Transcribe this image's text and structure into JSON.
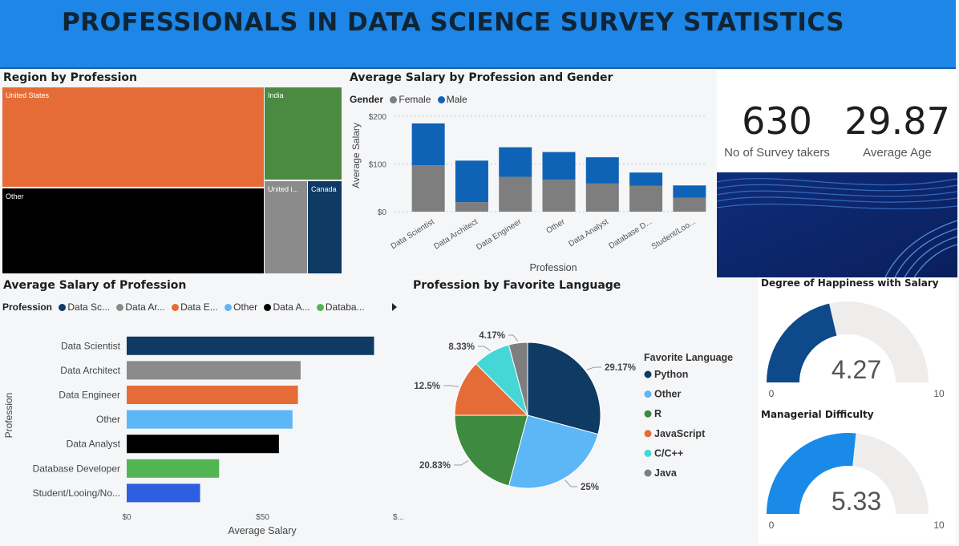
{
  "dashboard_title": "PROFESSIONALS IN DATA SCIENCE SURVEY STATISTICS",
  "colors": {
    "title_bar": "#1d86e6",
    "orange": "#e56c37",
    "green": "#4a8b41",
    "gray": "#8b8b8b",
    "navy": "#0e3a63",
    "male": "#0f63b6",
    "female": "#7e7e7e"
  },
  "treemap": {
    "title": "Region by Profession",
    "tiles": [
      {
        "label": "United States",
        "color": "#e56c37"
      },
      {
        "label": "India",
        "color": "#4a8b41"
      },
      {
        "label": "Other",
        "color": "#000000"
      },
      {
        "label": "United i...",
        "color": "#8b8b8b"
      },
      {
        "label": "Canada",
        "color": "#0e3a63"
      }
    ]
  },
  "kpis": [
    {
      "value": "630",
      "label": "No of Survey takers"
    },
    {
      "value": "29.87",
      "label": "Average Age"
    }
  ],
  "gauges": [
    {
      "title": "Degree of Happiness with Salary",
      "value": 4.27,
      "value_label": "4.27",
      "min": 0,
      "max": 10,
      "min_label": "0",
      "max_label": "10",
      "color": "#0e4a89"
    },
    {
      "title": "Managerial Difficulty",
      "value": 5.33,
      "value_label": "5.33",
      "min": 0,
      "max": 10,
      "min_label": "0",
      "max_label": "10",
      "color": "#1a8ae8"
    }
  ],
  "chart_data": [
    {
      "type": "bar",
      "stacked": true,
      "title": "Average Salary by Profession and Gender",
      "legend_title": "Gender",
      "legend_position": "top-left",
      "xlabel": "Profession",
      "ylabel": "Average Salary",
      "ylim": [
        0,
        200
      ],
      "yticks": [
        "$0",
        "$100",
        "$200"
      ],
      "ytick_values": [
        0,
        100,
        200
      ],
      "grid": true,
      "categories": [
        "Data Scientist",
        "Data Architect",
        "Data Engineer",
        "Other",
        "Data Analyst",
        "Database D...",
        "Student/Loo..."
      ],
      "series": [
        {
          "name": "Female",
          "color": "#7e7e7e",
          "values": [
            97,
            20,
            73,
            67,
            59,
            54,
            29
          ]
        },
        {
          "name": "Male",
          "color": "#0f63b6",
          "values": [
            88,
            87,
            62,
            58,
            55,
            28,
            26
          ]
        }
      ]
    },
    {
      "type": "bar",
      "orientation": "horizontal",
      "title": "Average Salary of Profession",
      "legend_title": "Profession",
      "legend_position": "top-left",
      "legend_items": [
        {
          "label": "Data Sc...",
          "color": "#0e3a63"
        },
        {
          "label": "Data Ar...",
          "color": "#8b8b8b"
        },
        {
          "label": "Data E...",
          "color": "#e56c37"
        },
        {
          "label": "Other",
          "color": "#5db6f5"
        },
        {
          "label": "Data A...",
          "color": "#000000"
        },
        {
          "label": "Databa...",
          "color": "#52b553"
        }
      ],
      "xlabel": "Average Salary",
      "ylabel": "Profession",
      "xlim": [
        0,
        100
      ],
      "xticks": [
        "$0",
        "$50",
        "$..."
      ],
      "xtick_values": [
        0,
        50,
        100
      ],
      "grid": false,
      "categories": [
        "Data Scientist",
        "Data Architect",
        "Data Engineer",
        "Other",
        "Data Analyst",
        "Database Developer",
        "Student/Looing/No..."
      ],
      "values": [
        91,
        64,
        63,
        61,
        56,
        34,
        27
      ],
      "colors": [
        "#0e3a63",
        "#8b8b8b",
        "#e56c37",
        "#5db6f5",
        "#000000",
        "#52b553",
        "#2f5fe0"
      ]
    },
    {
      "type": "pie",
      "title": "Profession by Favorite Language",
      "legend_title": "Favorite Language",
      "legend_position": "right",
      "labels": [
        "Python",
        "Other",
        "R",
        "JavaScript",
        "C/C++",
        "Java"
      ],
      "values": [
        29.17,
        25,
        20.83,
        12.5,
        8.33,
        4.17
      ],
      "value_labels": [
        "29.17%",
        "25%",
        "20.83%",
        "12.5%",
        "8.33%",
        "4.17%"
      ],
      "colors": [
        "#0e3a63",
        "#5db6f5",
        "#3e8a3e",
        "#e56c37",
        "#45d6d6",
        "#7e7e7e"
      ]
    }
  ]
}
